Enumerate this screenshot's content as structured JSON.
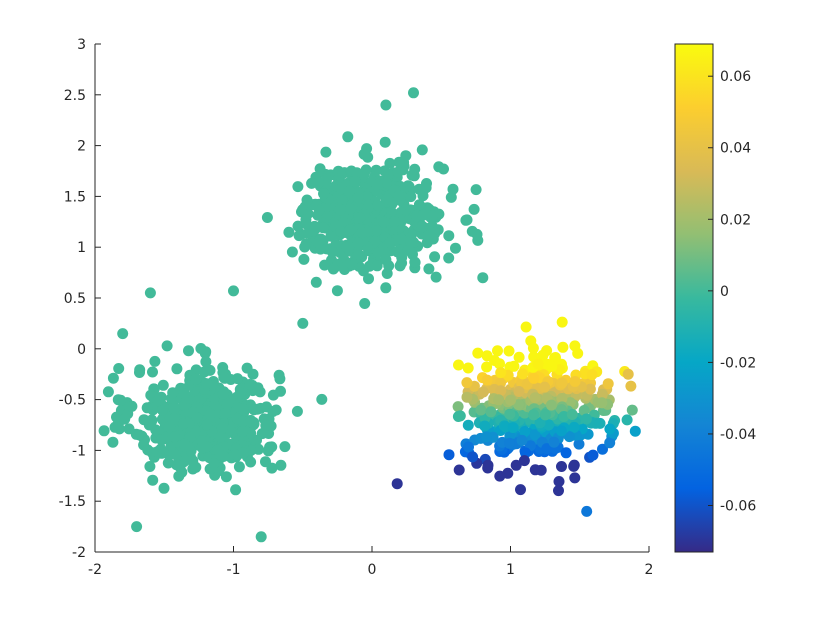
{
  "chart_data": {
    "type": "scatter",
    "title": "",
    "xlabel": "",
    "ylabel": "",
    "xlim": [
      -2,
      2
    ],
    "ylim": [
      -2,
      3
    ],
    "x_ticks": [
      -2,
      -1,
      0,
      1,
      2
    ],
    "x_tick_labels": [
      "-2",
      "-1",
      "0",
      "1",
      "2"
    ],
    "y_ticks": [
      -2,
      -1.5,
      -1,
      -0.5,
      0,
      0.5,
      1,
      1.5,
      2,
      2.5,
      3
    ],
    "y_tick_labels": [
      "-2",
      "-1.5",
      "-1",
      "-0.5",
      "0",
      "0.5",
      "1",
      "1.5",
      "2",
      "2.5",
      "3"
    ],
    "grid": false,
    "legend": "none",
    "colormap": "parula",
    "colorbar": {
      "location": "right",
      "clim": [
        -0.073,
        0.069
      ],
      "ticks": [
        -0.06,
        -0.04,
        -0.02,
        0,
        0.02,
        0.04,
        0.06
      ],
      "tick_labels": [
        "-0.06",
        "-0.04",
        "-0.02",
        "0",
        "0.02",
        "0.04",
        "0.06"
      ]
    },
    "clusters": [
      {
        "center": [
          -1.2,
          -0.7
        ],
        "spread": 0.26,
        "count": 500,
        "color_value": 0
      },
      {
        "center": [
          0.0,
          1.3
        ],
        "spread": 0.26,
        "count": 500,
        "color_value": 0
      },
      {
        "center": [
          1.2,
          -0.6
        ],
        "spread": 0.26,
        "count": 500,
        "color_value": "varies with y: high (~0.06) near y=-0.2, 0 near y=-0.55, low (~-0.07) near y=-1.1"
      }
    ],
    "sample_points": [
      {
        "x": -1.6,
        "y": 0.55,
        "c": 0
      },
      {
        "x": -1.0,
        "y": 0.57,
        "c": 0
      },
      {
        "x": -1.8,
        "y": 0.15,
        "c": 0
      },
      {
        "x": -0.8,
        "y": -1.85,
        "c": 0
      },
      {
        "x": -1.7,
        "y": -1.75,
        "c": 0
      },
      {
        "x": 0.3,
        "y": 2.52,
        "c": 0
      },
      {
        "x": 0.1,
        "y": 2.4,
        "c": 0
      },
      {
        "x": -0.5,
        "y": 0.25,
        "c": 0
      },
      {
        "x": 0.8,
        "y": 0.7,
        "c": 0
      },
      {
        "x": 1.2,
        "y": -0.15,
        "c": 0.065
      },
      {
        "x": 1.1,
        "y": -1.1,
        "c": -0.07
      },
      {
        "x": 1.55,
        "y": -1.6,
        "c": -0.045
      },
      {
        "x": 1.85,
        "y": -0.25,
        "c": 0.04
      }
    ]
  }
}
